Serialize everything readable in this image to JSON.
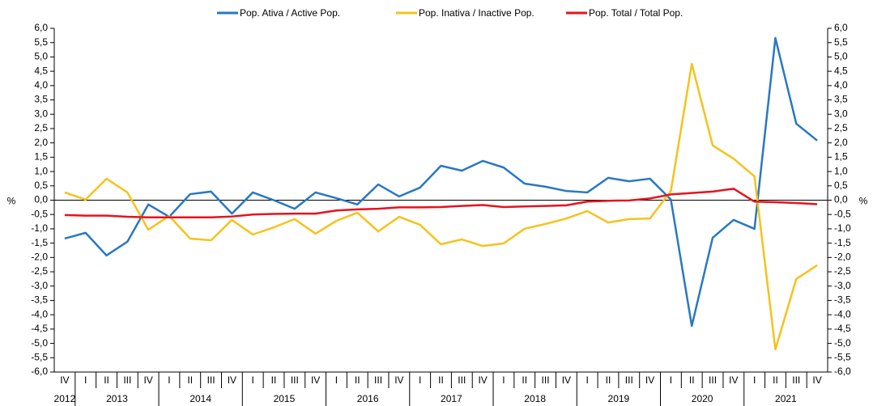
{
  "chart_data": {
    "type": "line",
    "categories": [
      "IV",
      "I",
      "II",
      "III",
      "IV",
      "I",
      "II",
      "III",
      "IV",
      "I",
      "II",
      "III",
      "IV",
      "I",
      "II",
      "III",
      "IV",
      "I",
      "II",
      "III",
      "IV",
      "I",
      "II",
      "III",
      "IV",
      "I",
      "II",
      "III",
      "IV",
      "I",
      "II",
      "III",
      "IV",
      "I",
      "II",
      "III",
      "IV"
    ],
    "years": [
      "2012",
      "2013",
      "2014",
      "2015",
      "2016",
      "2017",
      "2018",
      "2019",
      "2020",
      "2021"
    ],
    "series": [
      {
        "name": "Pop. Ativa / Active Pop.",
        "color": "#2878c3",
        "values": [
          -1.34,
          -1.14,
          -1.93,
          -1.45,
          -0.15,
          -0.58,
          0.21,
          0.3,
          -0.47,
          0.27,
          0.0,
          -0.3,
          0.27,
          0.07,
          -0.15,
          0.55,
          0.13,
          0.44,
          1.2,
          1.03,
          1.37,
          1.14,
          0.58,
          0.47,
          0.32,
          0.27,
          0.78,
          0.66,
          0.75,
          0.02,
          -4.39,
          -1.31,
          -0.69,
          -1.0,
          5.66,
          2.67,
          2.08
        ]
      },
      {
        "name": "Pop. Inativa / Inactive Pop.",
        "color": "#f6c21c",
        "values": [
          0.27,
          0.02,
          0.75,
          0.27,
          -1.03,
          -0.55,
          -1.34,
          -1.4,
          -0.69,
          -1.2,
          -0.95,
          -0.66,
          -1.17,
          -0.72,
          -0.44,
          -1.09,
          -0.58,
          -0.86,
          -1.54,
          -1.37,
          -1.6,
          -1.51,
          -1.0,
          -0.83,
          -0.64,
          -0.38,
          -0.78,
          -0.66,
          -0.64,
          0.32,
          4.76,
          1.91,
          1.45,
          0.83,
          -5.21,
          -2.75,
          -2.27
        ]
      },
      {
        "name": "Pop. Total / Total Pop.",
        "color": "#e8121c",
        "values": [
          -0.52,
          -0.54,
          -0.54,
          -0.58,
          -0.6,
          -0.6,
          -0.6,
          -0.6,
          -0.57,
          -0.5,
          -0.48,
          -0.47,
          -0.47,
          -0.36,
          -0.32,
          -0.3,
          -0.25,
          -0.25,
          -0.24,
          -0.2,
          -0.17,
          -0.24,
          -0.22,
          -0.2,
          -0.18,
          -0.05,
          -0.02,
          -0.01,
          0.06,
          0.2,
          0.25,
          0.3,
          0.4,
          -0.05,
          -0.07,
          -0.1,
          -0.14
        ]
      }
    ],
    "y_label": "%",
    "y2_label": "%",
    "ylim": [
      -6,
      6
    ],
    "yticks": [
      {
        "value": 6,
        "label": "6,0"
      },
      {
        "value": 5.5,
        "label": "5,5"
      },
      {
        "value": 5,
        "label": "5,0"
      },
      {
        "value": 4.5,
        "label": "4,5"
      },
      {
        "value": 4,
        "label": "4,0"
      },
      {
        "value": 3.5,
        "label": "3,5"
      },
      {
        "value": 3,
        "label": "3,0"
      },
      {
        "value": 2.5,
        "label": "2,5"
      },
      {
        "value": 2,
        "label": "2,0"
      },
      {
        "value": 1.5,
        "label": "1,5"
      },
      {
        "value": 1,
        "label": "1,0"
      },
      {
        "value": 0.5,
        "label": "0,5"
      },
      {
        "value": 0,
        "label": "0,0"
      },
      {
        "value": -0.5,
        "label": "-0,5"
      },
      {
        "value": -1,
        "label": "-1,0"
      },
      {
        "value": -1.5,
        "label": "-1,5"
      },
      {
        "value": -2,
        "label": "-2,0"
      },
      {
        "value": -2.5,
        "label": "-2,5"
      },
      {
        "value": -3,
        "label": "-3,0"
      },
      {
        "value": -3.5,
        "label": "-3,5"
      },
      {
        "value": -4,
        "label": "-4,0"
      },
      {
        "value": -4.5,
        "label": "-4,5"
      },
      {
        "value": -5,
        "label": "-5,0"
      },
      {
        "value": -5.5,
        "label": "-5,5"
      },
      {
        "value": -6,
        "label": "-6,0"
      }
    ],
    "y2lim": [
      -6,
      6
    ],
    "y2ticks": [
      {
        "value": 6,
        "label": "6,0"
      },
      {
        "value": 5.5,
        "label": "5,5"
      },
      {
        "value": 5,
        "label": "5,0"
      },
      {
        "value": 4.5,
        "label": "4,5"
      },
      {
        "value": 4,
        "label": "4,0"
      },
      {
        "value": 3.5,
        "label": "3,5"
      },
      {
        "value": 3,
        "label": "3,0"
      },
      {
        "value": 2.5,
        "label": "2,5"
      },
      {
        "value": 2,
        "label": "2,0"
      },
      {
        "value": 1.5,
        "label": "1,5"
      },
      {
        "value": 1,
        "label": "1,0"
      },
      {
        "value": 0.5,
        "label": "0,5"
      },
      {
        "value": 0,
        "label": "0,0"
      },
      {
        "value": -0.5,
        "label": "-0,5"
      },
      {
        "value": -1,
        "label": "-1,0"
      },
      {
        "value": -1.5,
        "label": "-1,5"
      },
      {
        "value": -2,
        "label": "-2,0"
      },
      {
        "value": -2.5,
        "label": "-2,5"
      },
      {
        "value": -3,
        "label": "-3,0"
      },
      {
        "value": -3.5,
        "label": "-3,5"
      },
      {
        "value": -4,
        "label": "-4,0"
      },
      {
        "value": -4.5,
        "label": "-4,5"
      },
      {
        "value": -5,
        "label": "-5,0"
      },
      {
        "value": -5.5,
        "label": "-5,5"
      },
      {
        "value": -6,
        "label": "-6,0"
      }
    ],
    "legend": "top"
  }
}
